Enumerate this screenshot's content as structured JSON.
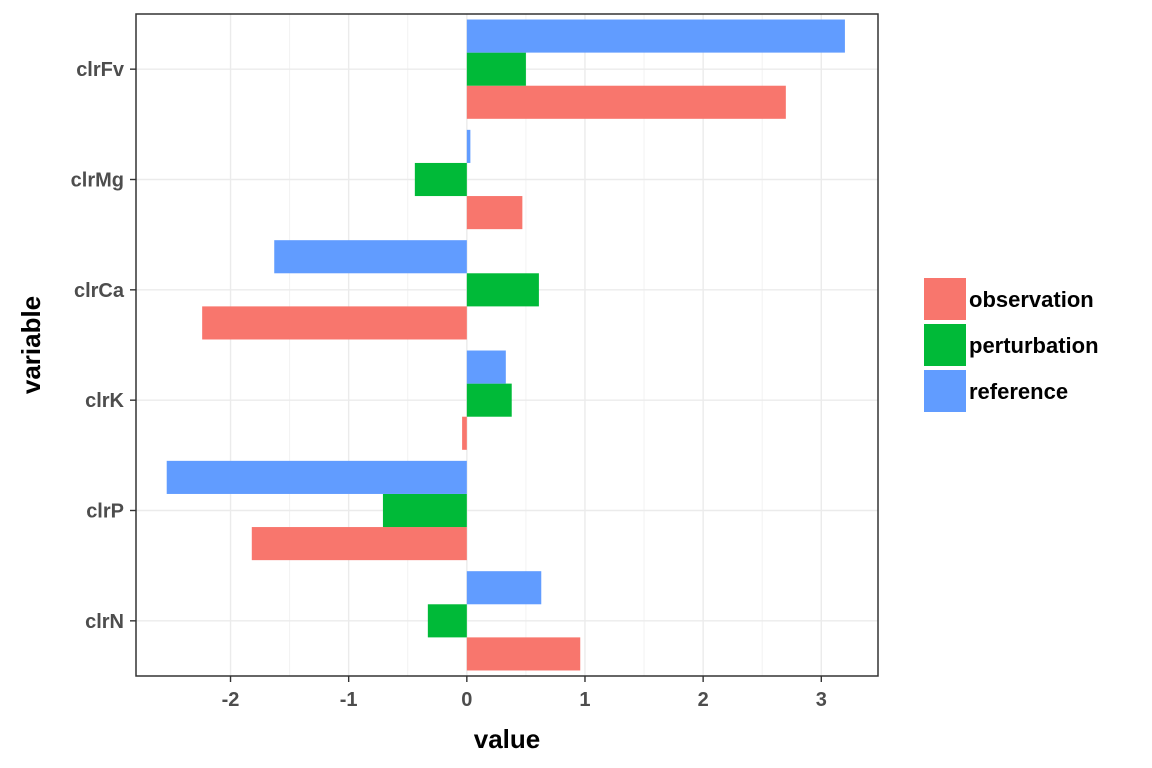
{
  "chart_data": {
    "type": "bar",
    "orientation": "horizontal",
    "title": "",
    "xlabel": "value",
    "ylabel": "variable",
    "categories": [
      "clrFv",
      "clrMg",
      "clrCa",
      "clrK",
      "clrP",
      "clrN"
    ],
    "series": [
      {
        "name": "observation",
        "color": "#F8766D",
        "values": [
          2.7,
          0.47,
          -2.24,
          -0.04,
          -1.82,
          0.96
        ]
      },
      {
        "name": "perturbation",
        "color": "#00BA38",
        "values": [
          0.5,
          -0.44,
          0.61,
          0.38,
          -0.71,
          -0.33
        ]
      },
      {
        "name": "reference",
        "color": "#619CFF",
        "values": [
          3.2,
          0.03,
          -1.63,
          0.33,
          -2.54,
          0.63
        ]
      }
    ],
    "xticks": [
      -2,
      -1,
      0,
      1,
      2,
      3
    ],
    "xtick_labels": [
      "-2",
      "-1",
      "0",
      "1",
      "2",
      "3"
    ],
    "xlim": [
      -2.8,
      3.48
    ],
    "grid": true,
    "legend_position": "right"
  }
}
